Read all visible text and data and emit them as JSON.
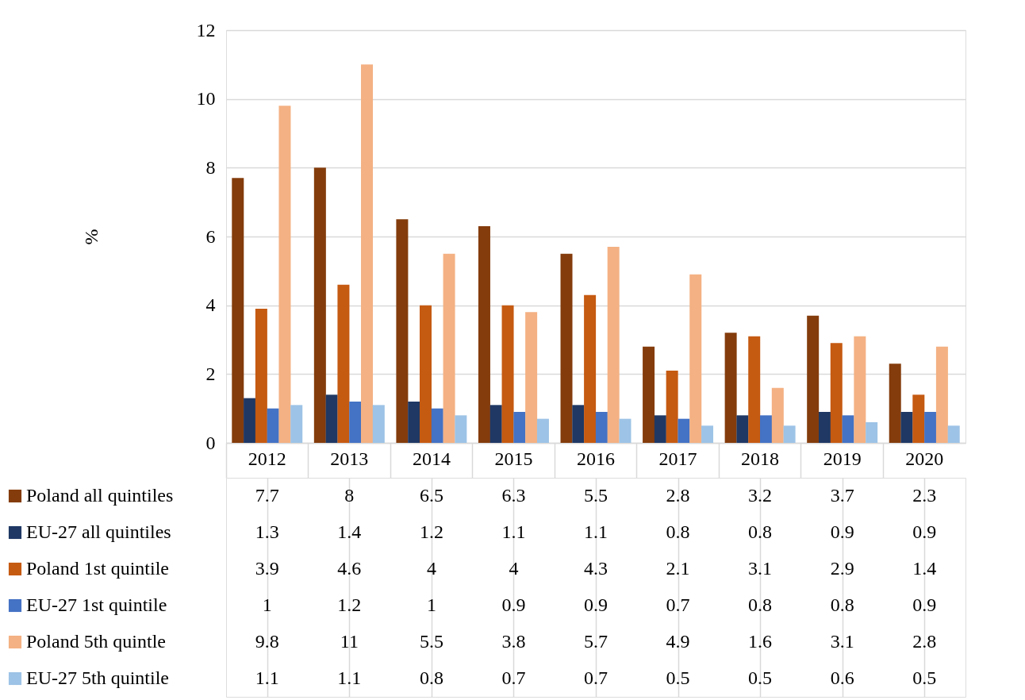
{
  "chart_data": {
    "type": "bar",
    "ylabel": "%",
    "categories": [
      "2012",
      "2013",
      "2014",
      "2015",
      "2016",
      "2017",
      "2018",
      "2019",
      "2020"
    ],
    "series": [
      {
        "name": "Poland all quintiles",
        "color": "#843c0c",
        "values": [
          7.7,
          8,
          6.5,
          6.3,
          5.5,
          2.8,
          3.2,
          3.7,
          2.3
        ]
      },
      {
        "name": "EU-27 all quintiles",
        "color": "#1f3864",
        "values": [
          1.3,
          1.4,
          1.2,
          1.1,
          1.1,
          0.8,
          0.8,
          0.9,
          0.9
        ]
      },
      {
        "name": "Poland 1st quintile",
        "color": "#c55a11",
        "values": [
          3.9,
          4.6,
          4,
          4,
          4.3,
          2.1,
          3.1,
          2.9,
          1.4
        ]
      },
      {
        "name": "EU-27 1st quintile",
        "color": "#4472c4",
        "values": [
          1,
          1.2,
          1,
          0.9,
          0.9,
          0.7,
          0.8,
          0.8,
          0.9
        ]
      },
      {
        "name": "Poland 5th quintle",
        "color": "#f4b183",
        "values": [
          9.8,
          11,
          5.5,
          3.8,
          5.7,
          4.9,
          1.6,
          3.1,
          2.8
        ]
      },
      {
        "name": "EU-27 5th quintile",
        "color": "#9dc3e6",
        "values": [
          1.1,
          1.1,
          0.8,
          0.7,
          0.7,
          0.5,
          0.5,
          0.6,
          0.5
        ]
      }
    ],
    "ylim": [
      0,
      12
    ],
    "yticks": [
      0,
      2,
      4,
      6,
      8,
      10,
      12
    ],
    "grid": "y",
    "data_labels": true,
    "legend": "bottom"
  }
}
